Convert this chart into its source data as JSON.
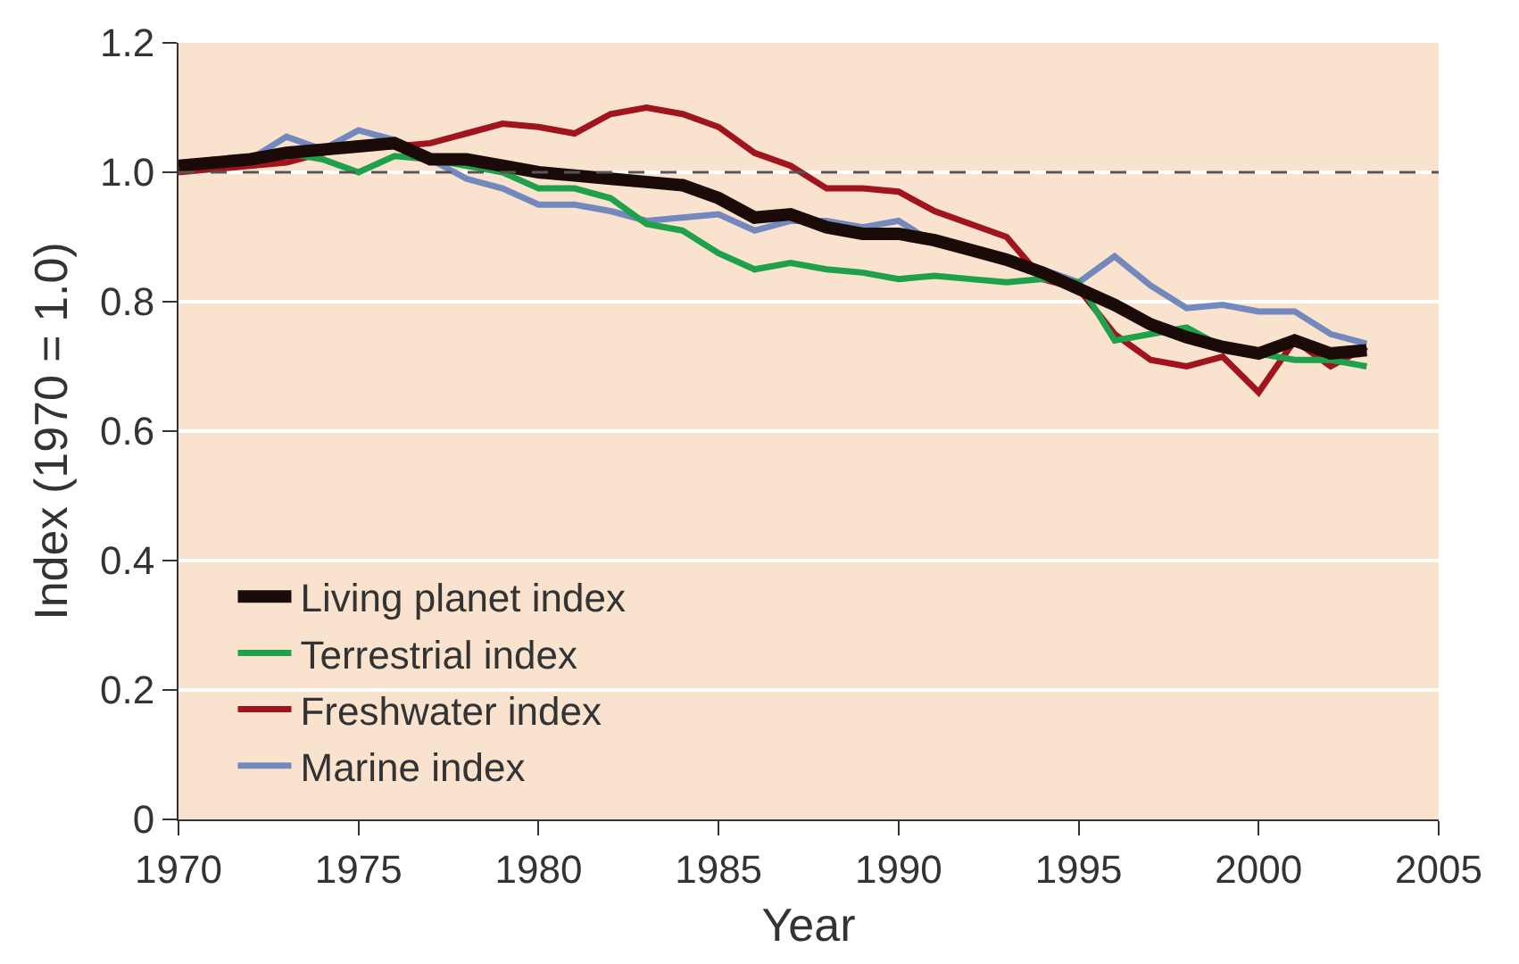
{
  "chart_data": {
    "type": "line",
    "xlabel": "Year",
    "ylabel": "Index (1970 = 1.0)",
    "x": [
      1970,
      1971,
      1972,
      1973,
      1974,
      1975,
      1976,
      1977,
      1978,
      1979,
      1980,
      1981,
      1982,
      1983,
      1984,
      1985,
      1986,
      1987,
      1988,
      1989,
      1990,
      1991,
      1992,
      1993,
      1994,
      1995,
      1996,
      1997,
      1998,
      1999,
      2000,
      2001,
      2002,
      2003
    ],
    "series": [
      {
        "name": "Living planet index",
        "color": "#1a0a08",
        "values": [
          1.01,
          1.015,
          1.02,
          1.03,
          1.035,
          1.04,
          1.045,
          1.02,
          1.02,
          1.01,
          1.0,
          0.995,
          0.99,
          0.985,
          0.98,
          0.96,
          0.93,
          0.935,
          0.915,
          0.905,
          0.905,
          0.895,
          0.88,
          0.865,
          0.845,
          0.82,
          0.795,
          0.765,
          0.745,
          0.73,
          0.72,
          0.74,
          0.72,
          0.725
        ]
      },
      {
        "name": "Terrestrial index",
        "color": "#1fa04a",
        "values": [
          null,
          null,
          1.015,
          1.03,
          1.02,
          1.0,
          1.025,
          1.02,
          1.01,
          1.0,
          0.975,
          0.975,
          0.96,
          0.92,
          0.91,
          0.875,
          0.85,
          0.86,
          0.85,
          0.845,
          0.835,
          0.84,
          0.835,
          0.83,
          0.835,
          0.83,
          0.74,
          0.75,
          0.76,
          0.73,
          0.72,
          0.71,
          0.71,
          0.7
        ]
      },
      {
        "name": "Freshwater index",
        "color": "#a0141e",
        "values": [
          1.0,
          1.005,
          1.01,
          1.015,
          1.03,
          1.04,
          1.04,
          1.045,
          1.06,
          1.075,
          1.07,
          1.06,
          1.09,
          1.1,
          1.09,
          1.07,
          1.03,
          1.01,
          0.975,
          0.975,
          0.97,
          0.94,
          0.92,
          0.9,
          0.835,
          0.82,
          0.75,
          0.71,
          0.7,
          0.715,
          0.66,
          0.74,
          0.7,
          0.73
        ]
      },
      {
        "name": "Marine index",
        "color": "#7388bd",
        "values": [
          1.01,
          1.02,
          1.02,
          1.055,
          1.035,
          1.065,
          1.05,
          1.02,
          0.99,
          0.975,
          0.95,
          0.95,
          0.94,
          0.925,
          0.93,
          0.935,
          0.91,
          0.925,
          0.925,
          0.915,
          0.925,
          0.89,
          0.88,
          0.865,
          0.85,
          0.83,
          0.87,
          0.825,
          0.79,
          0.795,
          0.785,
          0.785,
          0.75,
          0.735
        ]
      }
    ],
    "xlim": [
      1970,
      2005
    ],
    "xticks": [
      1970,
      1975,
      1980,
      1985,
      1990,
      1995,
      2000,
      2005
    ],
    "ylim": [
      0,
      1.2
    ],
    "yticks": [
      0,
      {
        "value": 0.2,
        "label": "0.2"
      },
      {
        "value": 0.4,
        "label": "0.4"
      },
      {
        "value": 0.6,
        "label": "0.6"
      },
      {
        "value": 0.8,
        "label": "0.8"
      },
      {
        "value": 1.0,
        "label": "1.0"
      },
      {
        "value": 1.2,
        "label": "1.2"
      }
    ],
    "ref_lines": [
      {
        "axis": "y",
        "value": 1.0,
        "color": "#555555",
        "line_style": "dashed"
      }
    ],
    "grid": "y",
    "legend": "bottom left",
    "line_style": "solid",
    "marker": "none"
  }
}
